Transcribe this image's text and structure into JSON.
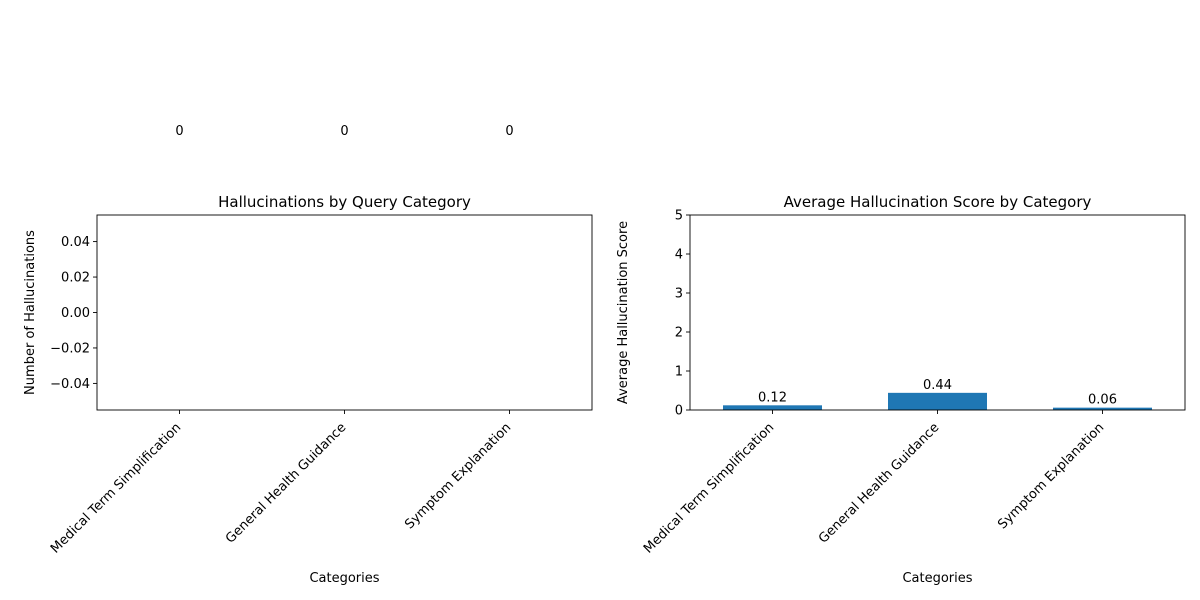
{
  "chart_data": [
    {
      "type": "bar",
      "title": "Hallucinations by Query Category",
      "xlabel": "Categories",
      "ylabel": "Number of Hallucinations",
      "categories": [
        "Medical Term Simplification",
        "General Health Guidance",
        "Symptom Explanation"
      ],
      "values": [
        0,
        0,
        0
      ],
      "data_labels": [
        "0",
        "0",
        "0"
      ],
      "ylim": [
        -0.055,
        0.055
      ],
      "yticks": [
        -0.04,
        -0.02,
        0.0,
        0.02,
        0.04
      ],
      "ytick_labels": [
        "−0.04",
        "−0.02",
        "0.00",
        "0.02",
        "0.04"
      ],
      "grid": false,
      "bar_color": "#1f77b4"
    },
    {
      "type": "bar",
      "title": "Average Hallucination Score by Category",
      "xlabel": "Categories",
      "ylabel": "Average Hallucination Score",
      "categories": [
        "Medical Term Simplification",
        "General Health Guidance",
        "Symptom Explanation"
      ],
      "values": [
        0.12,
        0.44,
        0.06
      ],
      "data_labels": [
        "0.12",
        "0.44",
        "0.06"
      ],
      "ylim": [
        0,
        5
      ],
      "yticks": [
        0,
        1,
        2,
        3,
        4,
        5
      ],
      "ytick_labels": [
        "0",
        "1",
        "2",
        "3",
        "4",
        "5"
      ],
      "grid": false,
      "bar_color": "#1f77b4"
    }
  ]
}
